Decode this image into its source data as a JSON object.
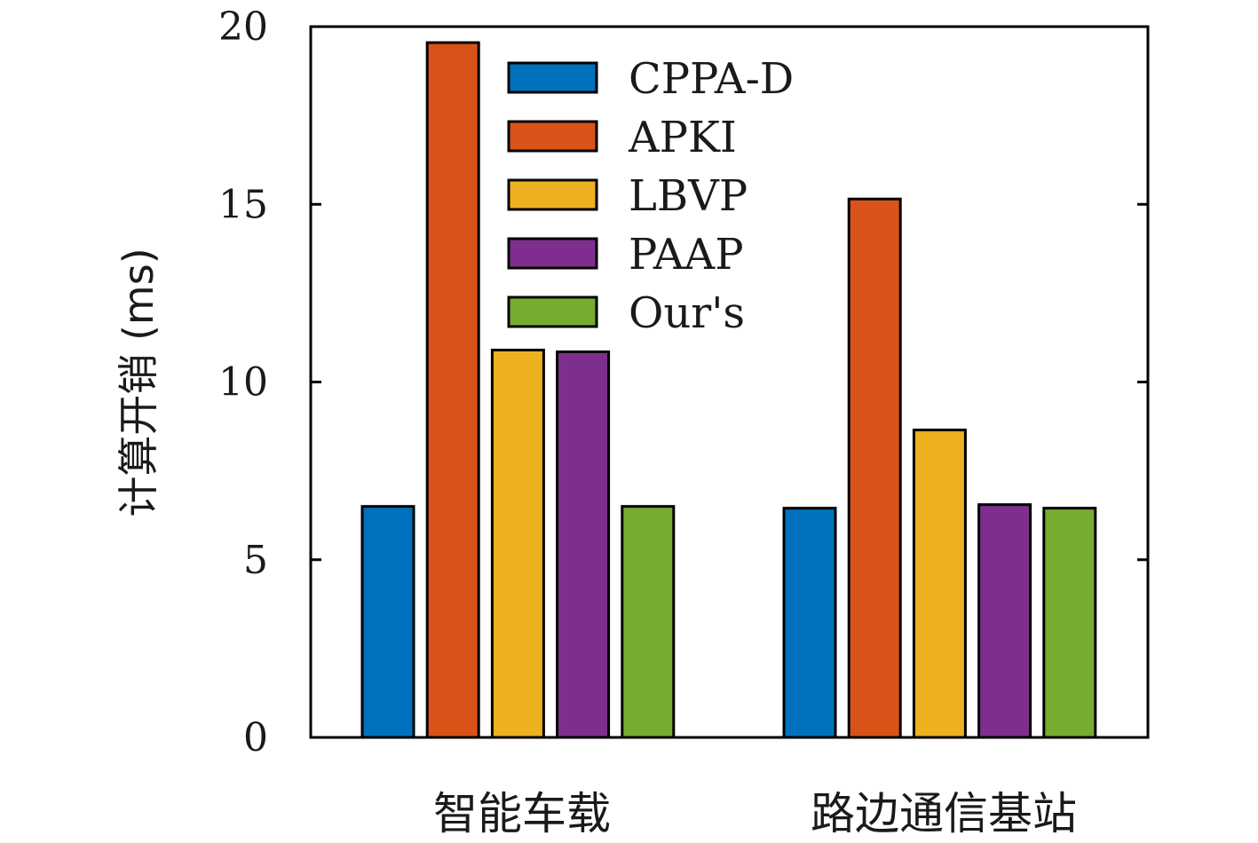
{
  "chart_data": {
    "type": "bar",
    "ylabel": "计算开销 (ms)",
    "ylim": [
      0,
      20
    ],
    "yticks": [
      0,
      5,
      10,
      15,
      20
    ],
    "categories": [
      "智能车载",
      "路边通信基站"
    ],
    "series": [
      {
        "name": "CPPA-D",
        "color": "#0072BD",
        "values": [
          6.5,
          6.45
        ]
      },
      {
        "name": "APKI",
        "color": "#D95319",
        "values": [
          19.55,
          15.15
        ]
      },
      {
        "name": "LBVP",
        "color": "#EDB120",
        "values": [
          10.9,
          8.65
        ]
      },
      {
        "name": "PAAP",
        "color": "#7E2F8E",
        "values": [
          10.85,
          6.55
        ]
      },
      {
        "name": "Our's",
        "color": "#77AC30",
        "values": [
          6.5,
          6.45
        ]
      }
    ],
    "legend_position": "top-center",
    "grid": false
  }
}
